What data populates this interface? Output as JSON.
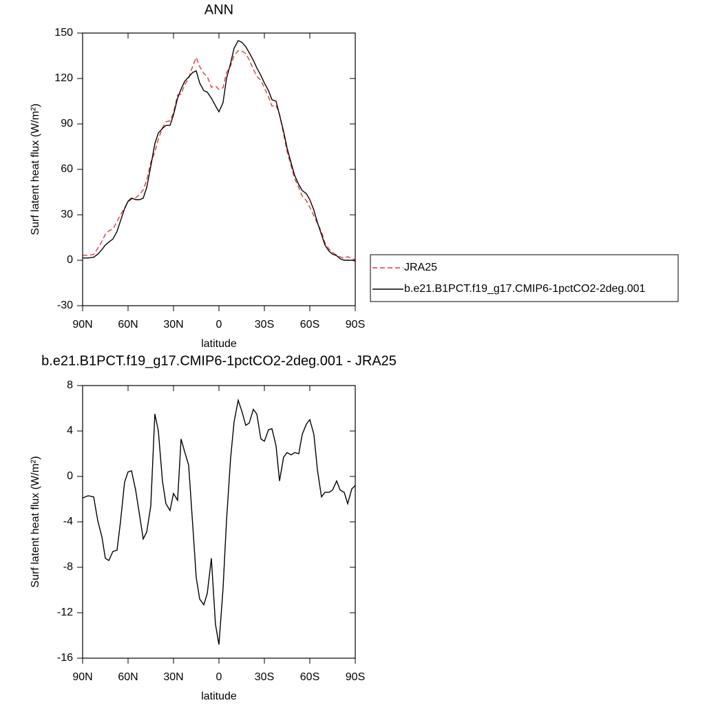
{
  "chart_data": [
    {
      "type": "line",
      "title": "ANN",
      "xlabel": "latitude",
      "ylabel": "Surf latent heat flux (W/m²)",
      "x": [
        90,
        86.4,
        82.7,
        80,
        77.3,
        75,
        72.7,
        70,
        67.3,
        65,
        62.3,
        60,
        57.7,
        55,
        52.3,
        50,
        47.7,
        45,
        42.3,
        40,
        37.3,
        35,
        32.3,
        30,
        27.3,
        25,
        22.7,
        20,
        17.3,
        15,
        12.7,
        10,
        7.7,
        5,
        2.3,
        0,
        -2.7,
        -5,
        -7.7,
        -10,
        -12.7,
        -15,
        -17.7,
        -20,
        -22.7,
        -25,
        -27.7,
        -30,
        -32.7,
        -35,
        -37.7,
        -40,
        -42.7,
        -45,
        -47.7,
        -50,
        -52.7,
        -55,
        -57.7,
        -60,
        -62.7,
        -65,
        -67.7,
        -70,
        -72.7,
        -75,
        -77.7,
        -80,
        -82.7,
        -85,
        -87.7,
        -90
      ],
      "series": [
        {
          "name": "JRA25",
          "color": "#f03030",
          "dashed": true,
          "values": [
            3.4,
            3.2,
            3.8,
            7.9,
            12.3,
            17.2,
            19.4,
            20.6,
            25.5,
            30,
            34.5,
            38.6,
            40.5,
            41.2,
            43.5,
            46.5,
            52.9,
            64.6,
            71.5,
            80,
            87.4,
            91.4,
            92,
            97.5,
            109.1,
            109.7,
            115.8,
            120,
            128.3,
            133.9,
            127.8,
            123.3,
            121.3,
            114.2,
            115,
            112.8,
            113.9,
            123.9,
            128.4,
            135.2,
            138.3,
            138.2,
            136.5,
            132.3,
            126.1,
            121.5,
            118.7,
            113.9,
            107.9,
            101.8,
            102.3,
            96.4,
            83.3,
            71.9,
            62.1,
            53.9,
            48,
            42.3,
            39.4,
            35,
            29.3,
            24.4,
            18.8,
            11.4,
            7.4,
            5.2,
            3.4,
            2.2,
            1.4,
            2.4,
            1.1,
            0.3
          ]
        },
        {
          "name": "b.e21.B1PCT.f19_g17.CMIP6-1pctCO2-2deg.001",
          "color": "#000000",
          "dashed": false,
          "values": [
            1.5,
            1.5,
            2,
            4,
            7,
            10,
            12,
            14,
            19,
            26,
            34,
            39,
            41,
            40,
            40,
            41,
            48,
            62,
            77,
            84,
            87,
            89,
            89,
            96,
            107,
            113,
            118,
            121,
            124,
            125,
            117,
            112,
            111,
            107,
            102,
            98,
            104,
            120,
            130,
            140,
            145,
            144,
            141,
            137,
            132,
            127,
            122,
            117,
            112,
            106,
            105,
            96,
            85,
            74,
            64,
            56,
            50,
            46,
            44,
            40,
            33,
            25,
            17,
            10,
            6,
            4,
            3,
            1,
            0,
            0,
            0,
            -0.5
          ]
        }
      ],
      "xlim": [
        90,
        -90
      ],
      "xticks": [
        {
          "value": 90,
          "label": "90N"
        },
        {
          "value": 60,
          "label": "60N"
        },
        {
          "value": 30,
          "label": "30N"
        },
        0,
        {
          "value": -30,
          "label": "30S"
        },
        {
          "value": -60,
          "label": "60S"
        },
        {
          "value": -90,
          "label": "90S"
        }
      ],
      "ylim": [
        -30,
        150
      ],
      "yticks": [
        -30,
        0,
        30,
        60,
        90,
        120,
        150
      ],
      "legend": "right"
    },
    {
      "type": "line",
      "title": "b.e21.B1PCT.f19_g17.CMIP6-1pctCO2-2deg.001 - JRA25",
      "xlabel": "latitude",
      "ylabel": "Surf latent heat flux (W/m²)",
      "x": [
        90,
        86.4,
        82.7,
        80,
        77.3,
        75,
        72.7,
        70,
        67.3,
        65,
        62.3,
        60,
        57.7,
        55,
        52.3,
        50,
        47.7,
        45,
        42.3,
        40,
        37.3,
        35,
        32.3,
        30,
        27.3,
        25,
        22.7,
        20,
        17.3,
        15,
        12.7,
        10,
        7.7,
        5,
        2.3,
        0,
        -2.7,
        -5,
        -7.7,
        -10,
        -12.7,
        -15,
        -17.7,
        -20,
        -22.7,
        -25,
        -27.7,
        -30,
        -32.7,
        -35,
        -37.7,
        -40,
        -42.7,
        -45,
        -47.7,
        -50,
        -52.7,
        -55,
        -57.7,
        -60,
        -62.7,
        -65,
        -67.7,
        -70,
        -72.7,
        -75,
        -77.7,
        -80,
        -82.7,
        -85,
        -87.7,
        -90
      ],
      "series": [
        {
          "color": "#000000",
          "dashed": false,
          "values": [
            -1.9,
            -1.7,
            -1.8,
            -3.9,
            -5.3,
            -7.2,
            -7.4,
            -6.6,
            -6.5,
            -4,
            -0.5,
            0.4,
            0.5,
            -1.2,
            -3.5,
            -5.5,
            -4.9,
            -2.6,
            5.5,
            4,
            -0.4,
            -2.4,
            -3,
            -1.5,
            -2.1,
            3.3,
            2.2,
            1,
            -4.3,
            -8.9,
            -10.8,
            -11.3,
            -10.3,
            -7.2,
            -13,
            -14.8,
            -9.9,
            -3.9,
            1.6,
            4.8,
            6.7,
            5.8,
            4.5,
            4.7,
            5.9,
            5.5,
            3.3,
            3.1,
            4.1,
            4.2,
            2.7,
            -0.4,
            1.7,
            2.1,
            1.9,
            2.1,
            2,
            3.7,
            4.6,
            5,
            3.7,
            0.6,
            -1.8,
            -1.4,
            -1.4,
            -1.2,
            -0.4,
            -1.2,
            -1.4,
            -2.4,
            -1.1,
            -0.8
          ]
        }
      ],
      "xlim": [
        90,
        -90
      ],
      "xticks": [
        {
          "value": 90,
          "label": "90N"
        },
        {
          "value": 60,
          "label": "60N"
        },
        {
          "value": 30,
          "label": "30N"
        },
        0,
        {
          "value": -30,
          "label": "30S"
        },
        {
          "value": -60,
          "label": "60S"
        },
        {
          "value": -90,
          "label": "90S"
        }
      ],
      "ylim": [
        -16,
        8
      ],
      "yticks": [
        -16,
        -12,
        -8,
        -4,
        0,
        4,
        8
      ]
    }
  ]
}
